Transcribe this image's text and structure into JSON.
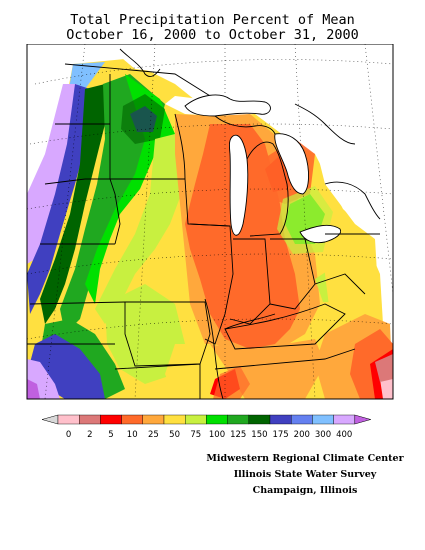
{
  "title": {
    "line1": "Total Precipitation Percent of Mean",
    "line2": "October 16, 2000 to October 31, 2000"
  },
  "legend": {
    "tick_labels": [
      "0",
      "2",
      "5",
      "10",
      "25",
      "50",
      "75",
      "100",
      "125",
      "150",
      "175",
      "200",
      "300",
      "400"
    ],
    "colors": [
      "#ffc0cb",
      "#dc7878",
      "#ff0000",
      "#ff6a2a",
      "#ffa83c",
      "#ffe040",
      "#c8f040",
      "#00e000",
      "#20a820",
      "#006400",
      "#4040c0",
      "#6480f0",
      "#80c0ff",
      "#d8a8ff",
      "#c060e0"
    ],
    "low_end_color": "#d8d8d8"
  },
  "credits": {
    "line1": "Midwestern Regional Climate Center",
    "line2": "Illinois State Water Survey",
    "line3": "Champaign, Illinois"
  }
}
